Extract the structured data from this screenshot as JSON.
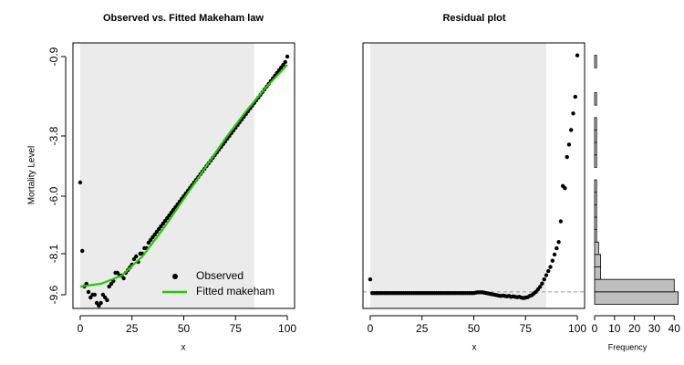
{
  "chart_data": [
    {
      "type": "scatter",
      "title": "Observed vs. Fitted Makeham law",
      "x_label": "x",
      "y_label": "Mortality Level",
      "xlim": [
        -3.5,
        103.5
      ],
      "xticks": [
        0,
        25,
        50,
        75,
        100
      ],
      "ylim": [
        -10.1,
        -0.4
      ],
      "yticks": [
        -0.9,
        -3.8,
        {
          "value": -6,
          "label": "-6.0"
        },
        -8.1,
        -9.6
      ],
      "shaded_region": [
        0,
        84
      ],
      "legend": "bottomright",
      "series": [
        {
          "name": "Observed",
          "color": "#000000",
          "style": "points",
          "x": [
            0,
            1,
            2,
            3,
            4,
            5,
            6,
            7,
            8,
            9,
            10,
            11,
            12,
            13,
            14,
            15,
            16,
            17,
            18,
            19,
            20,
            21,
            22,
            23,
            24,
            25,
            26,
            27,
            28,
            29,
            30,
            31,
            32,
            33,
            34,
            35,
            36,
            37,
            38,
            39,
            40,
            41,
            42,
            43,
            44,
            45,
            46,
            47,
            48,
            49,
            50,
            51,
            52,
            53,
            54,
            55,
            56,
            57,
            58,
            59,
            60,
            61,
            62,
            63,
            64,
            65,
            66,
            67,
            68,
            69,
            70,
            71,
            72,
            73,
            74,
            75,
            76,
            77,
            78,
            79,
            80,
            81,
            82,
            83,
            84,
            85,
            86,
            87,
            88,
            89,
            90,
            91,
            92,
            93,
            94,
            95,
            96,
            97,
            98,
            99,
            100
          ],
          "values": [
            -5.5,
            -8.0,
            -9.3,
            -9.2,
            -9.5,
            -9.7,
            -9.6,
            -9.6,
            -9.9,
            -10.0,
            -9.9,
            -9.6,
            -9.7,
            -9.8,
            -9.3,
            -9.2,
            -9.1,
            -8.8,
            -8.8,
            -8.9,
            -8.9,
            -9.0,
            -8.8,
            -8.7,
            -8.6,
            -8.5,
            -8.3,
            -8.2,
            -8.4,
            -8.1,
            -8.1,
            -7.9,
            -7.9,
            -7.7,
            -7.6,
            -7.5,
            -7.4,
            -7.3,
            -7.2,
            -7.1,
            -7.0,
            -6.9,
            -6.8,
            -6.7,
            -6.6,
            -6.5,
            -6.4,
            -6.3,
            -6.2,
            -6.1,
            -6.0,
            -5.9,
            -5.8,
            -5.7,
            -5.6,
            -5.5,
            -5.4,
            -5.3,
            -5.2,
            -5.1,
            -5.0,
            -4.9,
            -4.8,
            -4.7,
            -4.6,
            -4.5,
            -4.4,
            -4.3,
            -4.2,
            -4.1,
            -4.0,
            -3.9,
            -3.8,
            -3.7,
            -3.6,
            -3.5,
            -3.4,
            -3.3,
            -3.2,
            -3.1,
            -3.0,
            -2.9,
            -2.8,
            -2.7,
            -2.6,
            -2.5,
            -2.4,
            -2.3,
            -2.2,
            -2.1,
            -2.0,
            -1.9,
            -1.8,
            -1.7,
            -1.6,
            -1.5,
            -1.4,
            -1.3,
            -1.2,
            -1.1,
            -0.9
          ]
        },
        {
          "name": "Fitted makeham",
          "color": "#22cc00",
          "style": "line",
          "x": [
            0,
            10,
            20,
            30,
            40,
            50,
            60,
            70,
            80,
            90,
            100
          ],
          "values": [
            -9.3,
            -9.2,
            -8.9,
            -8.2,
            -7.2,
            -6.1,
            -5.0,
            -3.9,
            -2.9,
            -2.0,
            -1.2
          ]
        }
      ]
    },
    {
      "type": "scatter",
      "title": "Residual plot",
      "x_label": "x",
      "xlim": [
        -3.5,
        103.5
      ],
      "xticks": [
        0,
        25,
        50,
        75,
        100
      ],
      "ylim": [
        -0.04,
        0.6
      ],
      "shaded_region": [
        0,
        85
      ],
      "reference_line": 0,
      "series": [
        {
          "color": "#000000",
          "style": "points",
          "x": [
            0,
            1,
            2,
            3,
            4,
            5,
            6,
            7,
            8,
            9,
            10,
            11,
            12,
            13,
            14,
            15,
            16,
            17,
            18,
            19,
            20,
            21,
            22,
            23,
            24,
            25,
            26,
            27,
            28,
            29,
            30,
            31,
            32,
            33,
            34,
            35,
            36,
            37,
            38,
            39,
            40,
            41,
            42,
            43,
            44,
            45,
            46,
            47,
            48,
            49,
            50,
            51,
            52,
            53,
            54,
            55,
            56,
            57,
            58,
            59,
            60,
            61,
            62,
            63,
            64,
            65,
            66,
            67,
            68,
            69,
            70,
            71,
            72,
            73,
            74,
            75,
            76,
            77,
            78,
            79,
            80,
            81,
            82,
            83,
            84,
            85,
            86,
            87,
            88,
            89,
            90,
            91,
            92,
            93,
            94,
            95,
            96,
            97,
            98,
            99,
            100
          ],
          "values": [
            0.03,
            -0.003,
            -0.003,
            -0.003,
            -0.003,
            -0.003,
            -0.003,
            -0.003,
            -0.003,
            -0.003,
            -0.003,
            -0.003,
            -0.003,
            -0.003,
            -0.003,
            -0.003,
            -0.003,
            -0.003,
            -0.003,
            -0.003,
            -0.003,
            -0.003,
            -0.003,
            -0.003,
            -0.003,
            -0.003,
            -0.003,
            -0.003,
            -0.003,
            -0.003,
            -0.003,
            -0.003,
            -0.003,
            -0.003,
            -0.003,
            -0.003,
            -0.003,
            -0.003,
            -0.003,
            -0.003,
            -0.003,
            -0.003,
            -0.003,
            -0.003,
            -0.003,
            -0.003,
            -0.003,
            -0.003,
            -0.003,
            -0.003,
            -0.003,
            -0.002,
            -0.001,
            -0.001,
            -0.001,
            -0.002,
            -0.003,
            -0.004,
            -0.005,
            -0.006,
            -0.007,
            -0.008,
            -0.009,
            -0.01,
            -0.009,
            -0.01,
            -0.011,
            -0.01,
            -0.012,
            -0.011,
            -0.012,
            -0.013,
            -0.012,
            -0.014,
            -0.015,
            -0.014,
            -0.013,
            -0.01,
            -0.008,
            -0.004,
            0,
            0.006,
            0.012,
            0.02,
            0.03,
            0.04,
            0.05,
            0.06,
            0.075,
            0.09,
            0.105,
            0.12,
            0.17,
            0.255,
            0.25,
            0.325,
            0.355,
            0.39,
            0.43,
            0.47,
            0.57
          ]
        }
      ]
    },
    {
      "type": "histogram",
      "orientation": "horizontal",
      "x_label": "Frequency",
      "color": "#bebebe",
      "xlim": [
        0,
        44
      ],
      "xticks": [
        0,
        10,
        20,
        30,
        40
      ],
      "ylim": [
        -0.04,
        0.6
      ],
      "bins": [
        -0.03,
        0,
        0.03,
        0.06,
        0.09,
        0.12,
        0.15,
        0.18,
        0.21,
        0.24,
        0.27,
        0.3,
        0.33,
        0.36,
        0.39,
        0.42,
        0.45,
        0.48,
        0.51,
        0.54,
        0.57
      ],
      "counts": [
        42,
        40,
        3,
        3,
        2,
        1,
        1,
        1,
        1,
        1,
        0,
        1,
        1,
        1,
        1,
        0,
        1,
        0,
        0,
        1
      ]
    }
  ]
}
